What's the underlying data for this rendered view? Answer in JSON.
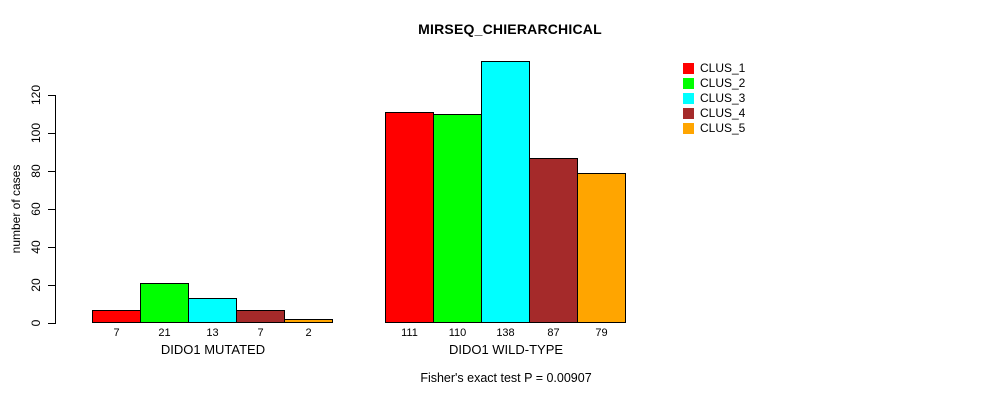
{
  "chart_data": {
    "type": "bar",
    "title": "MIRSEQ_CHIERARCHICAL",
    "ylabel": "number of cases",
    "xlabel": "",
    "subtitle": "Fisher's exact test P = 0.00907",
    "ylim": [
      0,
      138
    ],
    "yticks": [
      0,
      20,
      40,
      60,
      80,
      100,
      120
    ],
    "grid": false,
    "legend_position": "top-right",
    "categories": [
      "DIDO1 MUTATED",
      "DIDO1 WILD-TYPE"
    ],
    "groups": [
      {
        "label": "DIDO1 MUTATED",
        "values": [
          7,
          21,
          13,
          7,
          2
        ]
      },
      {
        "label": "DIDO1 WILD-TYPE",
        "values": [
          111,
          110,
          138,
          87,
          79
        ]
      }
    ],
    "series": [
      {
        "name": "CLUS_1",
        "color": "#FF0000",
        "values": [
          7,
          111
        ]
      },
      {
        "name": "CLUS_2",
        "color": "#00FF00",
        "values": [
          21,
          110
        ]
      },
      {
        "name": "CLUS_3",
        "color": "#00FFFF",
        "values": [
          13,
          138
        ]
      },
      {
        "name": "CLUS_4",
        "color": "#A52A2A",
        "values": [
          7,
          87
        ]
      },
      {
        "name": "CLUS_5",
        "color": "#FFA500",
        "values": [
          2,
          79
        ]
      }
    ],
    "legend": [
      {
        "label": "CLUS_1",
        "color": "#FF0000"
      },
      {
        "label": "CLUS_2",
        "color": "#00FF00"
      },
      {
        "label": "CLUS_3",
        "color": "#00FFFF"
      },
      {
        "label": "CLUS_4",
        "color": "#A52A2A"
      },
      {
        "label": "CLUS_5",
        "color": "#FFA500"
      }
    ],
    "colors": {
      "background": "#FFFFFF",
      "axis": "#000000",
      "bar_border": "#000000",
      "text": "#000000"
    }
  }
}
